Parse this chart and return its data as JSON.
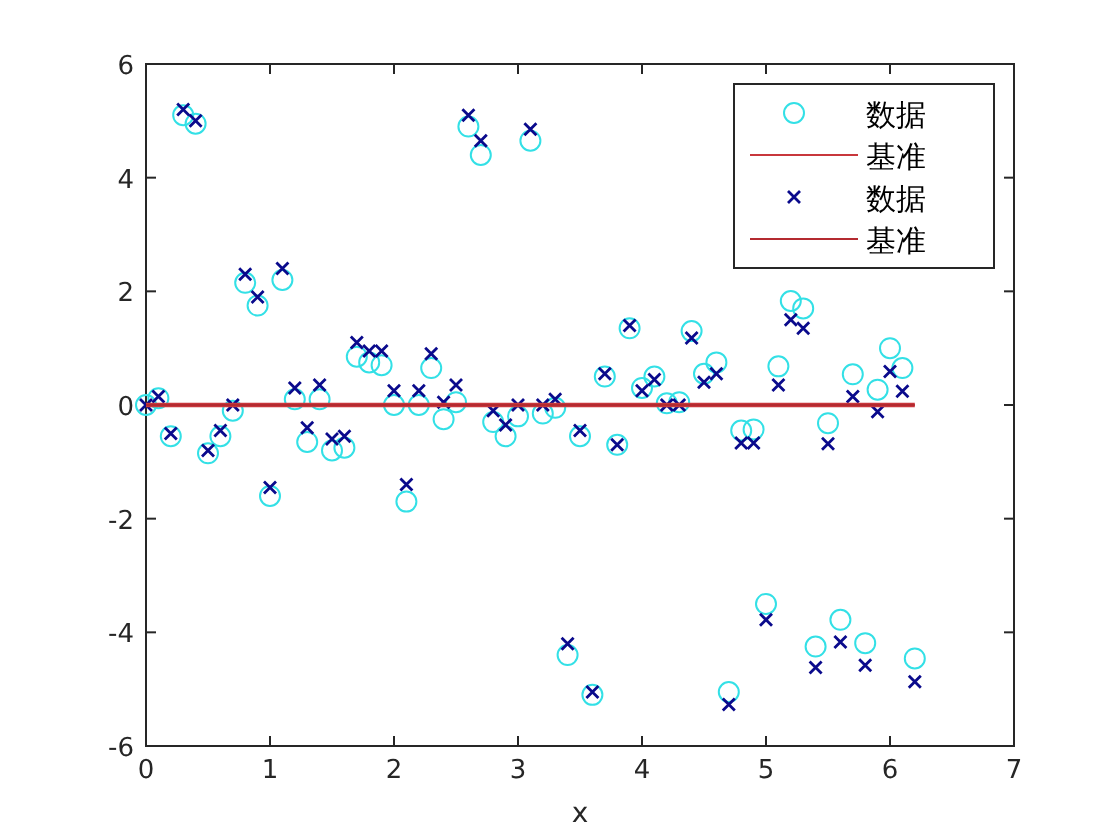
{
  "chart_data": {
    "type": "scatter",
    "xlabel": "x",
    "x": [
      0,
      0.1,
      0.2,
      0.3,
      0.4,
      0.5,
      0.6,
      0.7,
      0.8,
      0.9,
      1.0,
      1.1,
      1.2,
      1.3,
      1.4,
      1.5,
      1.6,
      1.7,
      1.8,
      1.9,
      2.0,
      2.1,
      2.2,
      2.3,
      2.4,
      2.5,
      2.6,
      2.7,
      2.8,
      2.9,
      3.0,
      3.1,
      3.2,
      3.3,
      3.4,
      3.5,
      3.6,
      3.7,
      3.8,
      3.9,
      4.0,
      4.1,
      4.2,
      4.3,
      4.4,
      4.5,
      4.6,
      4.7,
      4.8,
      4.9,
      5.0,
      5.1,
      5.2,
      5.3,
      5.4,
      5.5,
      5.6,
      5.7,
      5.8,
      5.9,
      6.0,
      6.1,
      6.2
    ],
    "series": [
      {
        "name": "数据",
        "marker": "circle",
        "color": "#33e0e6",
        "values": [
          0,
          0.12,
          -0.55,
          5.1,
          4.95,
          -0.85,
          -0.55,
          -0.1,
          2.15,
          1.75,
          -1.6,
          2.2,
          0.1,
          -0.65,
          0.1,
          -0.8,
          -0.75,
          0.85,
          0.75,
          0.7,
          0,
          -1.7,
          0,
          0.65,
          -0.25,
          0.05,
          4.9,
          4.4,
          -0.3,
          -0.55,
          -0.2,
          4.65,
          -0.15,
          -0.05,
          -4.4,
          -0.55,
          -5.1,
          0.5,
          -0.7,
          1.35,
          0.3,
          0.5,
          0.03,
          0.05,
          1.3,
          0.55,
          0.75,
          -5.05,
          -0.45,
          -0.43,
          -3.5,
          0.68,
          1.83,
          1.7,
          -4.25,
          -0.32,
          -3.78,
          0.54,
          -4.19,
          0.27,
          1.0,
          0.65,
          -4.46
        ]
      },
      {
        "name": "基准",
        "type": "line",
        "color": "#c8373c",
        "values": [
          0,
          0,
          0,
          0,
          0,
          0,
          0,
          0,
          0,
          0,
          0,
          0,
          0,
          0,
          0,
          0,
          0,
          0,
          0,
          0,
          0,
          0,
          0,
          0,
          0,
          0,
          0,
          0,
          0,
          0,
          0,
          0,
          0,
          0,
          0,
          0,
          0,
          0,
          0,
          0,
          0,
          0,
          0,
          0,
          0,
          0,
          0,
          0,
          0,
          0,
          0,
          0,
          0,
          0,
          0,
          0,
          0,
          0,
          0,
          0,
          0,
          0,
          0
        ]
      },
      {
        "name": "数据",
        "marker": "cross",
        "color": "#0a0a8c",
        "values": [
          0,
          0.15,
          -0.5,
          5.2,
          5.0,
          -0.8,
          -0.45,
          0,
          2.3,
          1.9,
          -1.45,
          2.4,
          0.3,
          -0.4,
          0.35,
          -0.6,
          -0.55,
          1.1,
          0.95,
          0.95,
          0.25,
          -1.4,
          0.25,
          0.9,
          0.05,
          0.35,
          5.1,
          4.65,
          -0.1,
          -0.35,
          0,
          4.85,
          0,
          0.1,
          -4.2,
          -0.45,
          -5.05,
          0.55,
          -0.7,
          1.4,
          0.25,
          0.45,
          0,
          0,
          1.18,
          0.4,
          0.55,
          -5.27,
          -0.67,
          -0.67,
          -3.78,
          0.35,
          1.5,
          1.35,
          -4.62,
          -0.68,
          -4.17,
          0.15,
          -4.58,
          -0.12,
          0.59,
          0.24,
          -4.87
        ]
      },
      {
        "name": "基准",
        "type": "line",
        "color": "#b42a30",
        "values": [
          0,
          0,
          0,
          0,
          0,
          0,
          0,
          0,
          0,
          0,
          0,
          0,
          0,
          0,
          0,
          0,
          0,
          0,
          0,
          0,
          0,
          0,
          0,
          0,
          0,
          0,
          0,
          0,
          0,
          0,
          0,
          0,
          0,
          0,
          0,
          0,
          0,
          0,
          0,
          0,
          0,
          0,
          0,
          0,
          0,
          0,
          0,
          0,
          0,
          0,
          0,
          0,
          0,
          0,
          0,
          0,
          0,
          0,
          0,
          0,
          0,
          0,
          0
        ]
      }
    ],
    "xlim": [
      0,
      7
    ],
    "ylim": [
      -6,
      6
    ],
    "xticks": [
      0,
      1,
      2,
      3,
      4,
      5,
      6,
      7
    ],
    "yticks": [
      -6,
      -4,
      -2,
      0,
      2,
      4,
      6
    ],
    "legend": "top right",
    "grid": false
  }
}
